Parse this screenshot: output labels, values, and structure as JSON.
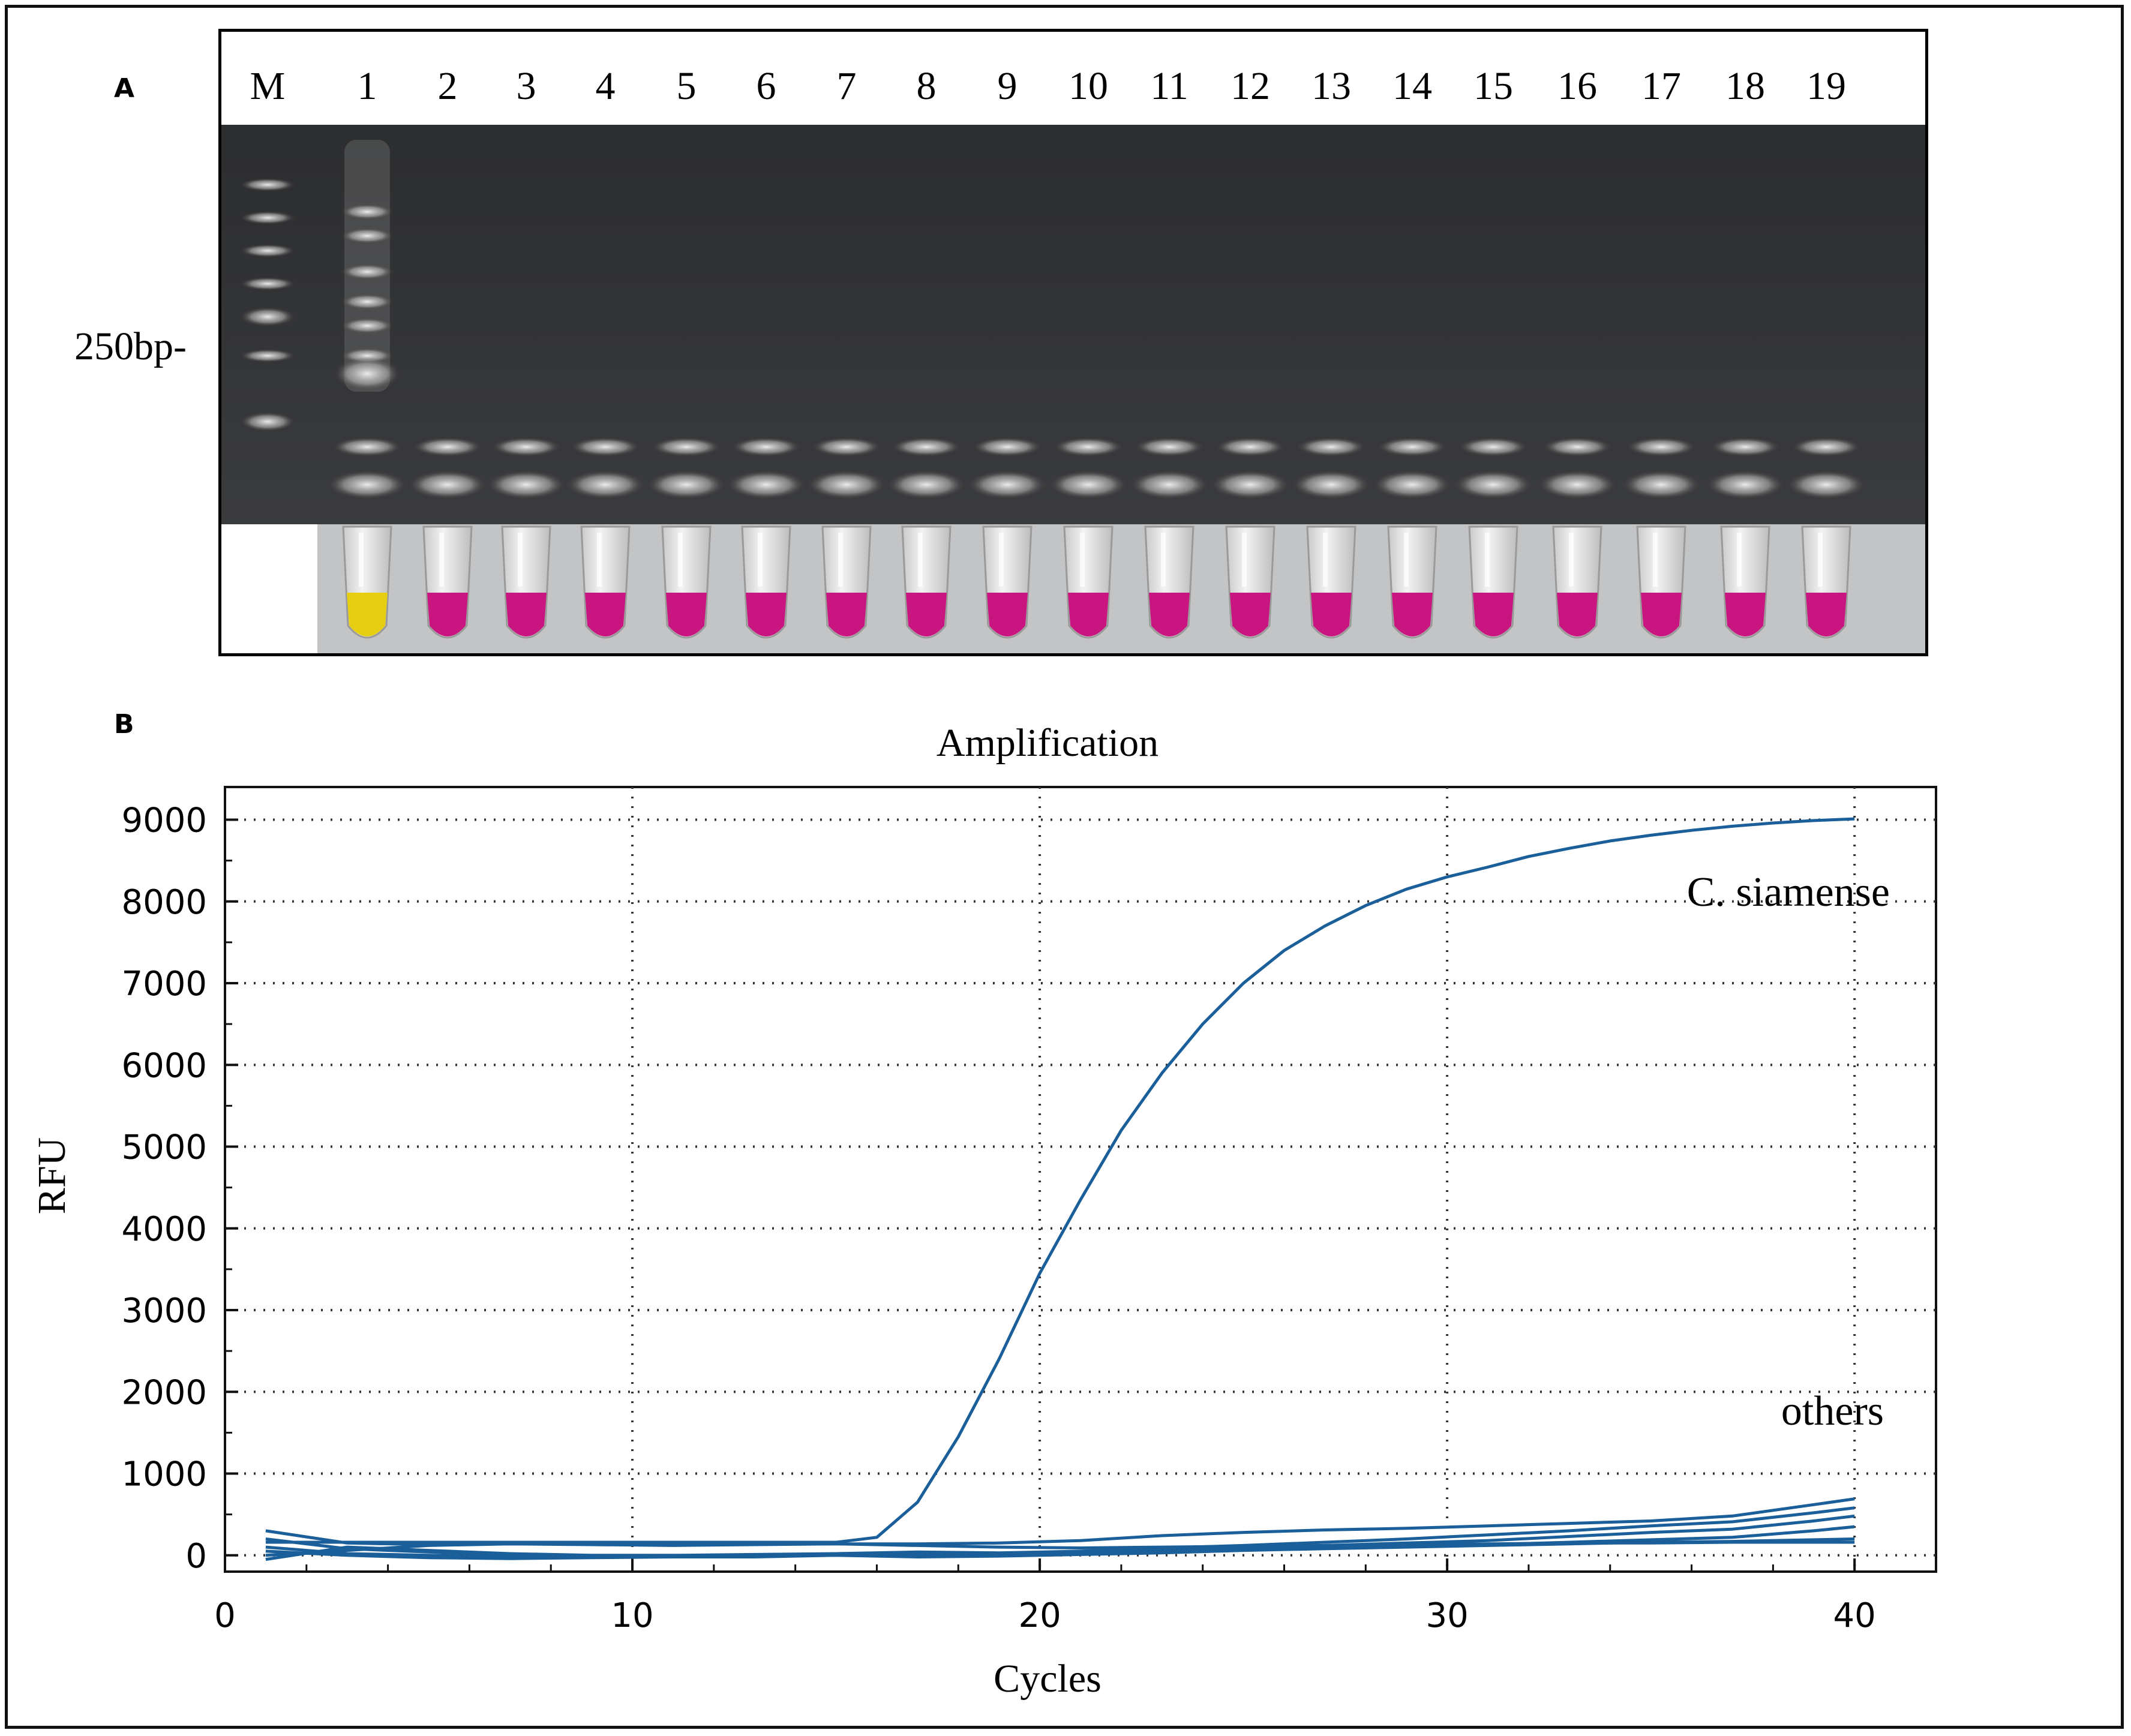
{
  "panel_a": {
    "letter": "A",
    "lane_labels": [
      "M",
      "1",
      "2",
      "3",
      "4",
      "5",
      "6",
      "7",
      "8",
      "9",
      "10",
      "11",
      "12",
      "13",
      "14",
      "15",
      "16",
      "17",
      "18",
      "19"
    ],
    "marker_label": "250bp-",
    "tube_colors": {
      "positive": "#e6cf12",
      "negative": "#c8157f"
    },
    "positive_lanes": [
      "1"
    ]
  },
  "panel_b": {
    "letter": "B"
  },
  "chart_data": {
    "type": "line",
    "title": "Amplification",
    "xlabel": "Cycles",
    "ylabel": "RFU",
    "xlim": [
      0,
      42
    ],
    "ylim": [
      -200,
      9400
    ],
    "xticks": [
      0,
      10,
      20,
      30,
      40
    ],
    "yticks": [
      0,
      1000,
      2000,
      3000,
      4000,
      5000,
      6000,
      7000,
      8000,
      9000
    ],
    "grid": true,
    "line_color": "#1a5f9a",
    "annotations": [
      "C. siamense",
      "others"
    ],
    "series": [
      {
        "name": "C. siamense",
        "x": [
          1,
          2,
          3,
          4,
          5,
          6,
          7,
          8,
          9,
          10,
          11,
          12,
          13,
          14,
          15,
          16,
          17,
          18,
          19,
          20,
          21,
          22,
          23,
          24,
          25,
          26,
          27,
          28,
          29,
          30,
          31,
          32,
          33,
          34,
          35,
          36,
          37,
          38,
          39,
          40
        ],
        "y": [
          160,
          160,
          160,
          160,
          160,
          160,
          160,
          160,
          160,
          160,
          160,
          160,
          160,
          160,
          160,
          220,
          650,
          1450,
          2400,
          3450,
          4350,
          5200,
          5900,
          6500,
          7000,
          7400,
          7700,
          7950,
          8150,
          8300,
          8420,
          8550,
          8650,
          8740,
          8810,
          8870,
          8920,
          8960,
          8990,
          9010
        ]
      },
      {
        "x": [
          1,
          3,
          5,
          7,
          9,
          11,
          13,
          15,
          17,
          19,
          21,
          23,
          25,
          27,
          29,
          31,
          33,
          35,
          37,
          39,
          40
        ],
        "y": [
          300,
          150,
          130,
          140,
          140,
          140,
          140,
          140,
          140,
          150,
          180,
          240,
          280,
          310,
          330,
          360,
          390,
          420,
          480,
          620,
          690
        ]
      },
      {
        "x": [
          1,
          3,
          5,
          7,
          9,
          11,
          13,
          15,
          17,
          19,
          21,
          23,
          25,
          27,
          29,
          31,
          33,
          35,
          37,
          39,
          40
        ],
        "y": [
          -50,
          100,
          60,
          20,
          0,
          0,
          10,
          20,
          40,
          30,
          50,
          90,
          120,
          160,
          200,
          250,
          300,
          360,
          410,
          520,
          580
        ]
      },
      {
        "x": [
          1,
          3,
          5,
          7,
          9,
          11,
          13,
          15,
          17,
          19,
          21,
          23,
          25,
          27,
          29,
          31,
          33,
          35,
          37,
          39,
          40
        ],
        "y": [
          200,
          80,
          40,
          10,
          -10,
          -20,
          -20,
          0,
          30,
          10,
          40,
          60,
          80,
          120,
          150,
          180,
          230,
          280,
          320,
          420,
          480
        ]
      },
      {
        "x": [
          1,
          3,
          5,
          7,
          9,
          11,
          13,
          15,
          17,
          19,
          21,
          23,
          25,
          27,
          29,
          31,
          33,
          35,
          37,
          39,
          40
        ],
        "y": [
          50,
          0,
          -30,
          -40,
          -30,
          -20,
          -10,
          0,
          -20,
          -10,
          10,
          30,
          60,
          80,
          100,
          120,
          140,
          160,
          170,
          190,
          200
        ]
      },
      {
        "x": [
          1,
          3,
          5,
          7,
          9,
          11,
          13,
          15,
          17,
          19,
          21,
          23,
          25,
          27,
          29,
          31,
          33,
          35,
          37,
          39,
          40
        ],
        "y": [
          100,
          20,
          0,
          -10,
          -20,
          -10,
          0,
          10,
          0,
          20,
          40,
          50,
          70,
          90,
          110,
          130,
          160,
          190,
          220,
          300,
          350
        ]
      },
      {
        "x": [
          1,
          3,
          5,
          7,
          9,
          11,
          13,
          15,
          17,
          19,
          21,
          23,
          25,
          27,
          29,
          31,
          33,
          35,
          37,
          39,
          40
        ],
        "y": [
          0,
          60,
          120,
          140,
          130,
          120,
          130,
          140,
          120,
          100,
          90,
          100,
          110,
          120,
          130,
          140,
          150,
          150,
          160,
          160,
          160
        ]
      }
    ]
  }
}
